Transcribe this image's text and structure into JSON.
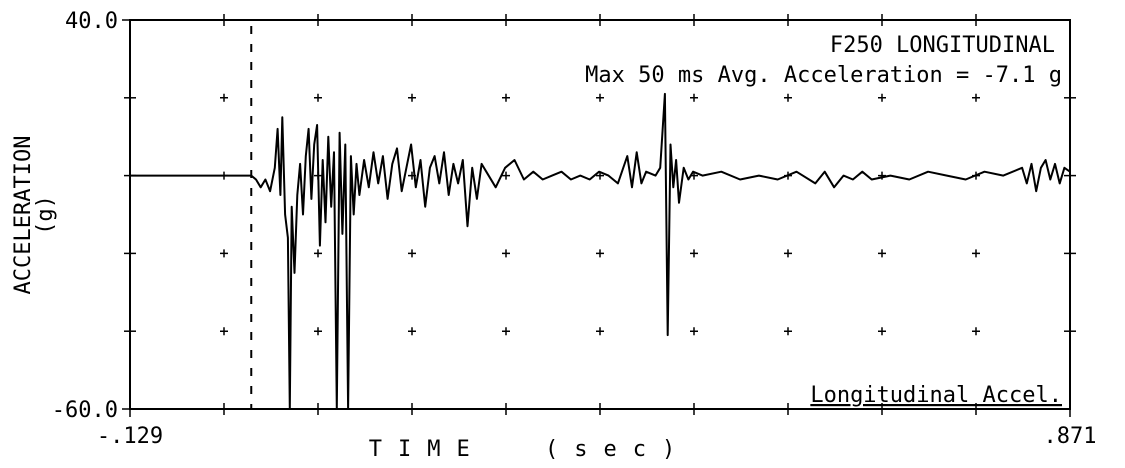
{
  "chart_data": {
    "type": "line",
    "title": "F250 LONGITUDINAL",
    "annotation": "Max 50 ms Avg. Acceleration = -7.1 g",
    "xlabel": "TIME (sec)",
    "ylabel": [
      "ACCELERATION",
      "(g)"
    ],
    "xlim": [
      -0.129,
      0.871
    ],
    "ylim": [
      -60,
      40
    ],
    "xticks": [
      {
        "value": -0.129,
        "label": "-.129"
      },
      {
        "value": 0.871,
        "label": ".871"
      }
    ],
    "yticks": [
      {
        "value": -60,
        "label": "-60.0"
      },
      {
        "value": 40,
        "label": "40.0"
      }
    ],
    "x_minor_ticks": [
      -0.029,
      0.071,
      0.171,
      0.271,
      0.371,
      0.471,
      0.571,
      0.671,
      0.771
    ],
    "y_minor_ticks": [
      20,
      0,
      -20,
      -40
    ],
    "grid": true,
    "reference_x": 0,
    "x": [
      -0.129,
      -0.05,
      0.0,
      0.005,
      0.01,
      0.015,
      0.02,
      0.025,
      0.028,
      0.031,
      0.033,
      0.036,
      0.039,
      0.041,
      0.043,
      0.046,
      0.049,
      0.052,
      0.055,
      0.058,
      0.061,
      0.064,
      0.067,
      0.07,
      0.073,
      0.076,
      0.079,
      0.082,
      0.085,
      0.088,
      0.091,
      0.094,
      0.097,
      0.1,
      0.103,
      0.106,
      0.109,
      0.112,
      0.115,
      0.12,
      0.125,
      0.13,
      0.135,
      0.14,
      0.145,
      0.15,
      0.155,
      0.16,
      0.165,
      0.17,
      0.175,
      0.18,
      0.185,
      0.19,
      0.195,
      0.2,
      0.205,
      0.21,
      0.215,
      0.22,
      0.225,
      0.23,
      0.235,
      0.24,
      0.245,
      0.25,
      0.26,
      0.27,
      0.28,
      0.29,
      0.3,
      0.31,
      0.32,
      0.33,
      0.34,
      0.35,
      0.36,
      0.37,
      0.38,
      0.39,
      0.4,
      0.405,
      0.41,
      0.415,
      0.42,
      0.43,
      0.435,
      0.44,
      0.443,
      0.446,
      0.449,
      0.452,
      0.455,
      0.46,
      0.465,
      0.47,
      0.48,
      0.5,
      0.52,
      0.54,
      0.56,
      0.58,
      0.6,
      0.61,
      0.62,
      0.63,
      0.64,
      0.65,
      0.66,
      0.68,
      0.7,
      0.72,
      0.74,
      0.76,
      0.78,
      0.8,
      0.82,
      0.825,
      0.83,
      0.835,
      0.84,
      0.845,
      0.85,
      0.855,
      0.86,
      0.865,
      0.871
    ],
    "series": [
      {
        "name": "Longitudinal Accel.",
        "color": "#000000",
        "values": [
          0,
          0,
          0,
          -1,
          -3,
          -1,
          -4,
          2,
          12,
          -5,
          15,
          -10,
          -16,
          -60,
          -8,
          -25,
          -5,
          3,
          -10,
          5,
          12,
          -6,
          8,
          13,
          -18,
          4,
          -12,
          10,
          -8,
          6,
          -60,
          11,
          -15,
          8,
          -60,
          5,
          -10,
          3,
          -5,
          4,
          -3,
          6,
          -2,
          5,
          -6,
          3,
          7,
          -4,
          2,
          8,
          -3,
          4,
          -8,
          2,
          5,
          -2,
          6,
          -5,
          3,
          -2,
          4,
          -13,
          2,
          -6,
          3,
          1,
          -3,
          2,
          4,
          -1,
          1,
          -1,
          0,
          1,
          -1,
          0,
          -1,
          1,
          0,
          -2,
          5,
          -3,
          6,
          -2,
          1,
          0,
          2,
          21,
          -41,
          8,
          -3,
          4,
          -7,
          2,
          -1,
          1,
          0,
          1,
          -1,
          0,
          -1,
          1,
          -2,
          1,
          -3,
          0,
          -1,
          1,
          -1,
          0,
          -1,
          1,
          0,
          -1,
          1,
          0,
          2,
          -2,
          3,
          -4,
          2,
          4,
          -1,
          3,
          -2,
          2,
          1
        ]
      }
    ]
  }
}
